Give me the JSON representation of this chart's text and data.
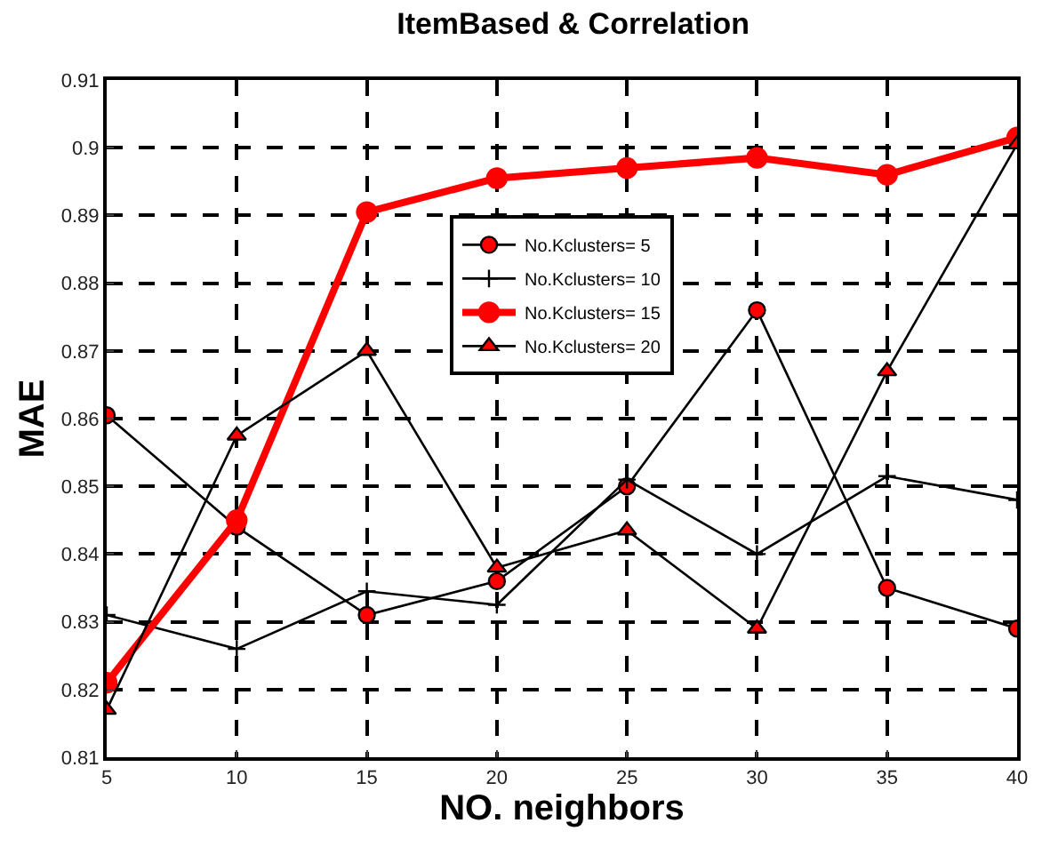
{
  "chart_data": {
    "type": "line",
    "title": "ItemBased & Correlation",
    "xlabel": "NO. neighbors",
    "ylabel": "MAE",
    "x": [
      5,
      10,
      15,
      20,
      25,
      30,
      35,
      40
    ],
    "series": [
      {
        "name": "No.Kclusters= 5",
        "color": "#000000",
        "colors": [
          "#ff0000",
          "#ff0000",
          "#ff0000",
          "#ff0000",
          "#ff0000",
          "#ff0000",
          "#ff0000",
          "#ff0000"
        ],
        "marker": "circle",
        "values": [
          0.8605,
          0.844,
          0.831,
          0.836,
          0.85,
          0.876,
          0.835,
          0.829
        ]
      },
      {
        "name": "No.Kclusters= 10",
        "color": "#000000",
        "colors": [
          "#000000",
          "#000000",
          "#000000",
          "#000000",
          "#000000",
          "#000000",
          "#000000",
          "#000000"
        ],
        "marker": "cross",
        "values": [
          0.831,
          0.826,
          0.8345,
          0.8325,
          0.851,
          0.84,
          0.8515,
          0.848
        ]
      },
      {
        "name": "No.Kclusters= 15",
        "color": "#ff0000",
        "colors": [
          "#ff0000",
          "#ff0000",
          "#ff0000",
          "#ff0000",
          "#ff0000",
          "#ff0000",
          "#ff0000",
          "#ff0000"
        ],
        "marker": "circle",
        "values": [
          0.821,
          0.845,
          0.8905,
          0.8955,
          0.897,
          0.8985,
          0.896,
          0.9015
        ]
      },
      {
        "name": "No.Kclusters= 20",
        "color": "#000000",
        "colors": [
          "#ff0000",
          "#ff0000",
          "#ff0000",
          "#ff0000",
          "#ff0000",
          "#ff0000",
          "#ff0000",
          "#ff0000"
        ],
        "marker": "triangle",
        "values": [
          0.817,
          0.8575,
          0.87,
          0.838,
          0.8435,
          0.829,
          0.867,
          0.9005
        ]
      }
    ],
    "xlim": [
      5,
      40
    ],
    "xticks": [
      5,
      10,
      15,
      20,
      25,
      30,
      35,
      40
    ],
    "ylim": [
      0.81,
      0.91
    ],
    "yticks": [
      0.81,
      0.82,
      0.83,
      0.84,
      0.85,
      0.86,
      0.87,
      0.88,
      0.89,
      0.9,
      0.91
    ],
    "grid": true,
    "legend": "top",
    "line_style": "solid"
  }
}
